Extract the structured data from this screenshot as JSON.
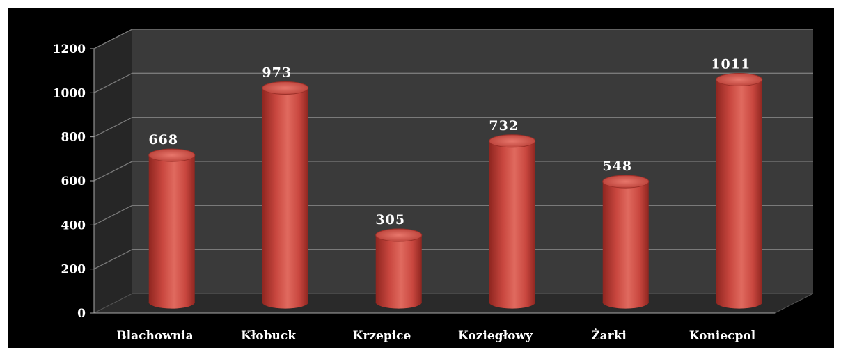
{
  "chart_data": {
    "type": "bar",
    "categories": [
      "Blachownia",
      "Kłobuck",
      "Krzepice",
      "Koziegłowy",
      "Żarki",
      "Koniecpol"
    ],
    "values": [
      668,
      973,
      305,
      732,
      548,
      1011
    ],
    "data_labels": [
      "668",
      "973",
      "305",
      "732",
      "548",
      "1011"
    ],
    "ylim": [
      0,
      1200
    ],
    "yticks": [
      0,
      200,
      400,
      600,
      800,
      1000,
      1200
    ],
    "ytick_labels": [
      "0",
      "200",
      "400",
      "600",
      "800",
      "1000",
      "1200"
    ],
    "grid": true,
    "bar_style": "3d-cylinder",
    "colors": {
      "bar": "#c9473f",
      "bar_light": "#e8776c",
      "bar_dark": "#8f2620",
      "background": "#000000",
      "wall": "#3a3a3a",
      "floor": "#2a2a2a",
      "gridline": "#7a7a7a",
      "text": "#ffffff"
    }
  }
}
